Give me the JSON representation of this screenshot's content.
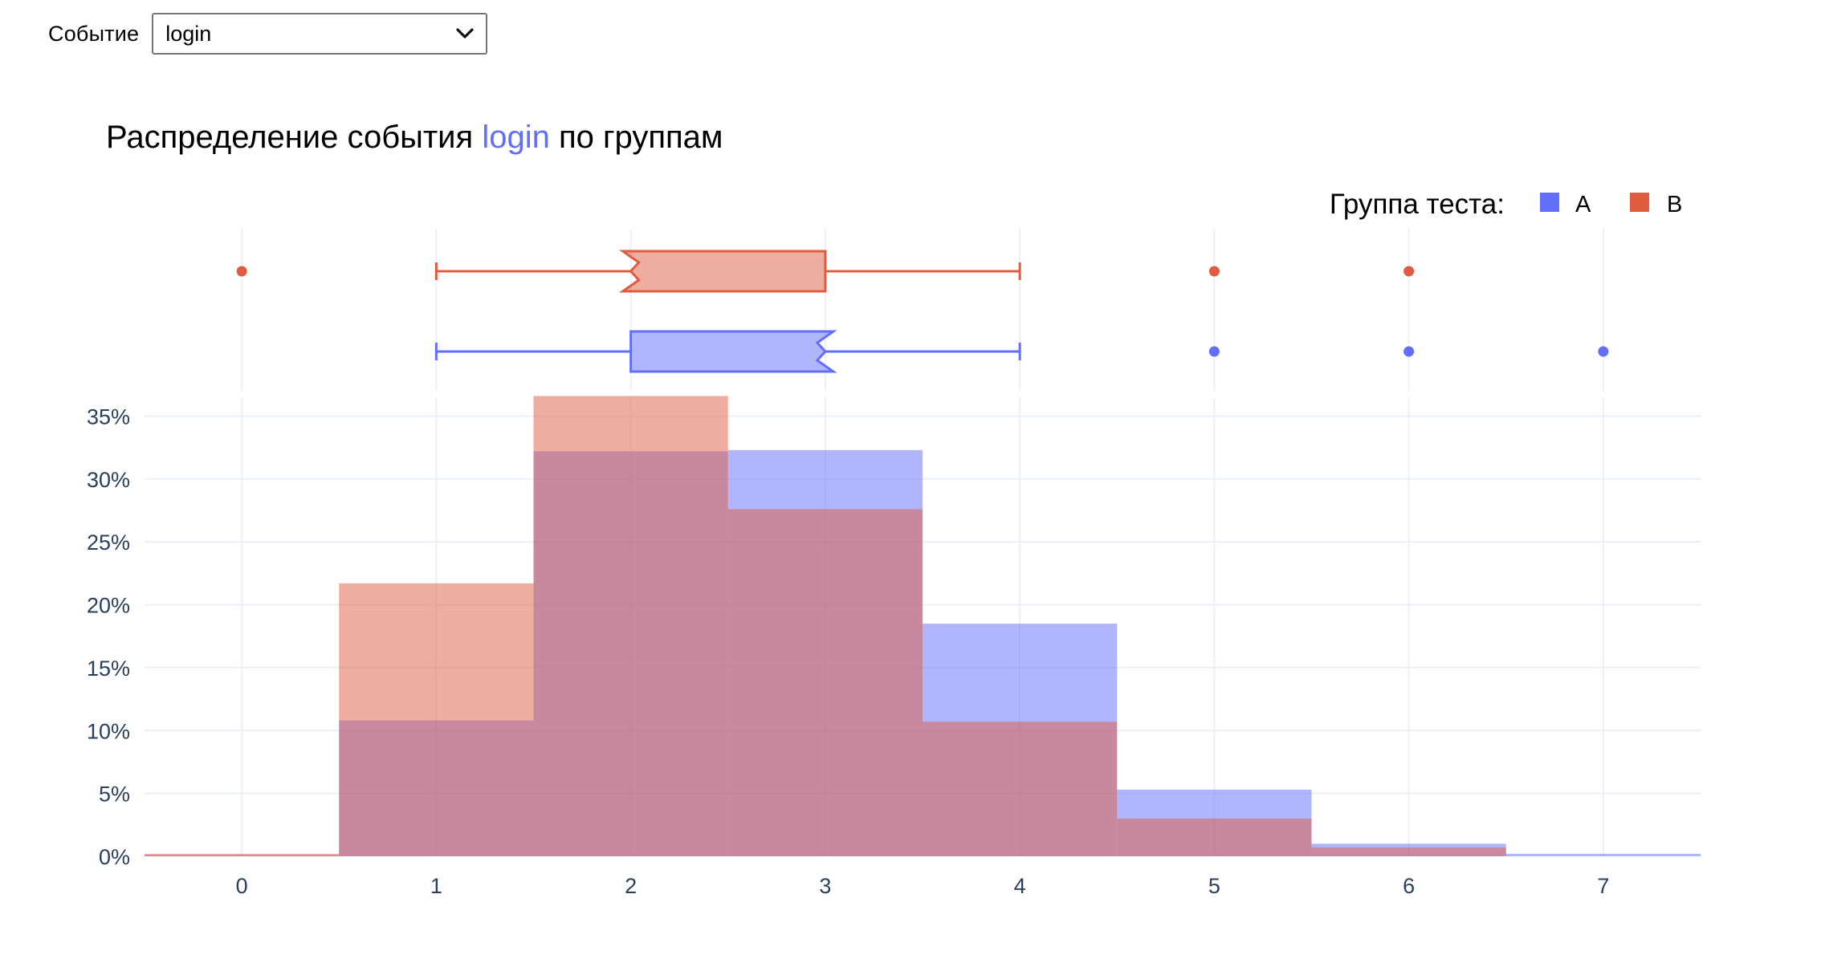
{
  "controls": {
    "select_label": "Событие",
    "select_value": "login"
  },
  "chart_data": {
    "type": "histogram",
    "title": {
      "prefix": "Распределение события ",
      "highlight": "login",
      "suffix": " по группам"
    },
    "legend": {
      "title": "Группа теста:",
      "placement": "top-right",
      "items": [
        {
          "name": "A",
          "color": "#636efa"
        },
        {
          "name": "B",
          "color": "#e05b40"
        }
      ]
    },
    "x": [
      0,
      1,
      2,
      3,
      4,
      5,
      6,
      7
    ],
    "xlim": [
      -0.5,
      7.5
    ],
    "ylim": [
      0,
      36.5
    ],
    "yticks": [
      0,
      5,
      10,
      15,
      20,
      25,
      30,
      35
    ],
    "ytick_labels": [
      "0%",
      "5%",
      "10%",
      "15%",
      "20%",
      "25%",
      "30%",
      "35%"
    ],
    "xtick_labels": [
      "0",
      "1",
      "2",
      "3",
      "4",
      "5",
      "6",
      "7"
    ],
    "grid": true,
    "series": [
      {
        "name": "A",
        "color": "#636efa",
        "values": [
          0.1,
          10.8,
          32.2,
          32.3,
          18.5,
          5.3,
          1.0,
          0.2
        ],
        "box": {
          "q1": 2,
          "median": 3,
          "q3": 3,
          "whisker_low": 1,
          "whisker_high": 4,
          "outliers": [
            5,
            6,
            7
          ]
        }
      },
      {
        "name": "B",
        "color": "#e05b40",
        "values": [
          0.2,
          21.7,
          36.6,
          27.6,
          10.7,
          3.0,
          0.7,
          0.0
        ],
        "box": {
          "q1": 2,
          "median": 2,
          "q3": 3,
          "whisker_low": 1,
          "whisker_high": 4,
          "outliers": [
            0,
            5,
            6
          ]
        }
      }
    ]
  }
}
